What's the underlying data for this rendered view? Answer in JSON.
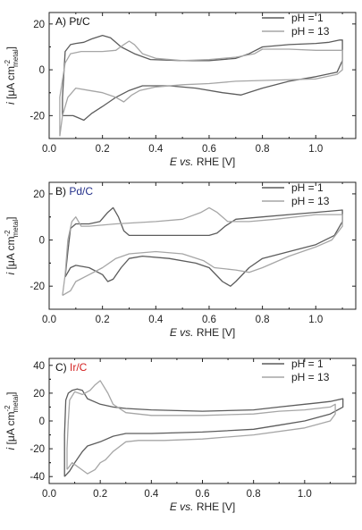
{
  "legend": {
    "entry_1": "pH = 1",
    "entry_2": "pH = 13"
  },
  "colors": {
    "ph1": "#5c5c5c",
    "ph13": "#a6a6a6",
    "pd_label": "#25318a",
    "ir_label": "#d42020",
    "frame": "#222222"
  },
  "panels": [
    {
      "id": "A",
      "label_prefix": "A) ",
      "label_metal": "Pt/C",
      "label_color": "#111111"
    },
    {
      "id": "B",
      "label_prefix": "B) ",
      "label_metal": "Pd/C",
      "label_color": "#25318a"
    },
    {
      "id": "C",
      "label_prefix": "C) ",
      "label_metal": "Ir/C",
      "label_color": "#d42020"
    }
  ],
  "axis_text": {
    "x_title_e": "E",
    "x_title_vs": " vs.",
    "x_title_rest": " RHE [V]",
    "y_title_i": "i",
    "y_title_mid": " [μA cm",
    "y_title_sup": "-2",
    "y_title_sub": "metal",
    "y_title_end": "]"
  },
  "chart_data": [
    {
      "type": "line",
      "title": "A) Pt/C",
      "xlabel": "E vs. RHE [V]",
      "ylabel": "i [μA cm-2 metal]",
      "xlim": [
        0.0,
        1.15
      ],
      "ylim": [
        -30,
        25
      ],
      "xticks": [
        "0.0",
        "0.2",
        "0.4",
        "0.6",
        "0.8",
        "1.0"
      ],
      "yticks": [
        "-20",
        "0",
        "20"
      ],
      "ytick_values": [
        -20,
        0,
        20
      ],
      "legend_position": "top-right",
      "series": [
        {
          "name": "pH = 1",
          "points": [
            [
              0.05,
              -20
            ],
            [
              0.05,
              -12
            ],
            [
              0.06,
              8
            ],
            [
              0.08,
              11
            ],
            [
              0.1,
              11.5
            ],
            [
              0.13,
              12
            ],
            [
              0.16,
              13.5
            ],
            [
              0.2,
              15
            ],
            [
              0.23,
              14
            ],
            [
              0.27,
              10
            ],
            [
              0.32,
              7
            ],
            [
              0.38,
              4.5
            ],
            [
              0.5,
              4
            ],
            [
              0.6,
              4
            ],
            [
              0.7,
              5
            ],
            [
              0.75,
              7
            ],
            [
              0.8,
              10
            ],
            [
              0.9,
              11
            ],
            [
              1.0,
              11.5
            ],
            [
              1.05,
              12
            ],
            [
              1.09,
              13
            ],
            [
              1.1,
              13
            ],
            [
              1.1,
              4
            ],
            [
              1.08,
              -1
            ],
            [
              1.0,
              -3
            ],
            [
              0.9,
              -5
            ],
            [
              0.8,
              -8
            ],
            [
              0.72,
              -11
            ],
            [
              0.65,
              -10
            ],
            [
              0.55,
              -8
            ],
            [
              0.45,
              -7
            ],
            [
              0.35,
              -7
            ],
            [
              0.3,
              -9
            ],
            [
              0.25,
              -12
            ],
            [
              0.2,
              -16
            ],
            [
              0.16,
              -19
            ],
            [
              0.13,
              -22
            ],
            [
              0.11,
              -21
            ],
            [
              0.09,
              -20
            ],
            [
              0.07,
              -20
            ],
            [
              0.05,
              -20
            ]
          ]
        },
        {
          "name": "pH = 13",
          "points": [
            [
              0.04,
              -29
            ],
            [
              0.04,
              -12
            ],
            [
              0.06,
              3
            ],
            [
              0.08,
              7
            ],
            [
              0.12,
              8
            ],
            [
              0.2,
              8
            ],
            [
              0.25,
              8.5
            ],
            [
              0.28,
              11
            ],
            [
              0.3,
              12.5
            ],
            [
              0.32,
              11
            ],
            [
              0.35,
              7
            ],
            [
              0.4,
              5
            ],
            [
              0.5,
              4
            ],
            [
              0.6,
              4.5
            ],
            [
              0.7,
              5.5
            ],
            [
              0.77,
              7
            ],
            [
              0.8,
              9
            ],
            [
              0.9,
              9
            ],
            [
              1.0,
              8.5
            ],
            [
              1.1,
              8.5
            ],
            [
              1.1,
              0
            ],
            [
              1.08,
              -2
            ],
            [
              1.0,
              -4
            ],
            [
              0.85,
              -4.5
            ],
            [
              0.7,
              -5
            ],
            [
              0.6,
              -6
            ],
            [
              0.5,
              -6.5
            ],
            [
              0.4,
              -7.5
            ],
            [
              0.34,
              -9
            ],
            [
              0.31,
              -11
            ],
            [
              0.28,
              -14
            ],
            [
              0.25,
              -12
            ],
            [
              0.2,
              -10
            ],
            [
              0.15,
              -9
            ],
            [
              0.1,
              -8
            ],
            [
              0.07,
              -12
            ],
            [
              0.05,
              -20
            ],
            [
              0.04,
              -29
            ]
          ]
        }
      ]
    },
    {
      "type": "line",
      "title": "B) Pd/C",
      "xlabel": "E vs. RHE [V]",
      "ylabel": "i [μA cm-2 metal]",
      "xlim": [
        0.0,
        1.15
      ],
      "ylim": [
        -30,
        25
      ],
      "xticks": [
        "0.0",
        "0.2",
        "0.4",
        "0.6",
        "0.8",
        "1.0"
      ],
      "yticks": [
        "-20",
        "0",
        "20"
      ],
      "ytick_values": [
        -20,
        0,
        20
      ],
      "legend_position": "top-right",
      "series": [
        {
          "name": "pH = 1",
          "points": [
            [
              0.06,
              -16
            ],
            [
              0.07,
              -5
            ],
            [
              0.08,
              5
            ],
            [
              0.1,
              7
            ],
            [
              0.15,
              7
            ],
            [
              0.19,
              8
            ],
            [
              0.22,
              12
            ],
            [
              0.24,
              14
            ],
            [
              0.26,
              10
            ],
            [
              0.28,
              4
            ],
            [
              0.3,
              2
            ],
            [
              0.4,
              2
            ],
            [
              0.5,
              2
            ],
            [
              0.6,
              2
            ],
            [
              0.63,
              3
            ],
            [
              0.66,
              6
            ],
            [
              0.7,
              9
            ],
            [
              0.8,
              10
            ],
            [
              0.9,
              11
            ],
            [
              1.0,
              12
            ],
            [
              1.1,
              13
            ],
            [
              1.1,
              8
            ],
            [
              1.07,
              2
            ],
            [
              1.0,
              -2
            ],
            [
              0.9,
              -5
            ],
            [
              0.8,
              -8
            ],
            [
              0.75,
              -12
            ],
            [
              0.7,
              -18
            ],
            [
              0.68,
              -20
            ],
            [
              0.65,
              -18
            ],
            [
              0.6,
              -12
            ],
            [
              0.55,
              -10
            ],
            [
              0.45,
              -8
            ],
            [
              0.35,
              -7
            ],
            [
              0.3,
              -8
            ],
            [
              0.27,
              -12
            ],
            [
              0.24,
              -17
            ],
            [
              0.22,
              -18
            ],
            [
              0.2,
              -15
            ],
            [
              0.15,
              -12
            ],
            [
              0.1,
              -11
            ],
            [
              0.08,
              -12
            ],
            [
              0.06,
              -16
            ]
          ]
        },
        {
          "name": "pH = 13",
          "points": [
            [
              0.05,
              -24
            ],
            [
              0.06,
              -15
            ],
            [
              0.07,
              0
            ],
            [
              0.085,
              8
            ],
            [
              0.1,
              10
            ],
            [
              0.12,
              6
            ],
            [
              0.15,
              6
            ],
            [
              0.25,
              7
            ],
            [
              0.4,
              8
            ],
            [
              0.5,
              9
            ],
            [
              0.57,
              12
            ],
            [
              0.6,
              14
            ],
            [
              0.63,
              12
            ],
            [
              0.67,
              8
            ],
            [
              0.75,
              8
            ],
            [
              0.85,
              9
            ],
            [
              1.0,
              11
            ],
            [
              1.1,
              11
            ],
            [
              1.1,
              6
            ],
            [
              1.06,
              0
            ],
            [
              1.0,
              -3
            ],
            [
              0.9,
              -7
            ],
            [
              0.8,
              -12
            ],
            [
              0.75,
              -14
            ],
            [
              0.7,
              -13
            ],
            [
              0.62,
              -12
            ],
            [
              0.58,
              -9
            ],
            [
              0.5,
              -6
            ],
            [
              0.4,
              -5
            ],
            [
              0.3,
              -6
            ],
            [
              0.25,
              -8
            ],
            [
              0.2,
              -12
            ],
            [
              0.15,
              -15
            ],
            [
              0.1,
              -18
            ],
            [
              0.08,
              -22
            ],
            [
              0.05,
              -24
            ]
          ]
        }
      ]
    },
    {
      "type": "line",
      "title": "C) Ir/C",
      "xlabel": "E vs. RHE [V]",
      "ylabel": "i [μA cm-2 metal]",
      "xlim": [
        0.0,
        1.2
      ],
      "ylim": [
        -45,
        45
      ],
      "xticks": [
        "0.0",
        "0.2",
        "0.4",
        "0.6",
        "0.8",
        "1.0"
      ],
      "yticks": [
        "-40",
        "-20",
        "0",
        "20",
        "40"
      ],
      "ytick_values": [
        -40,
        -20,
        0,
        20,
        40
      ],
      "legend_position": "top-right",
      "series": [
        {
          "name": "pH = 1",
          "points": [
            [
              0.06,
              -40
            ],
            [
              0.06,
              -10
            ],
            [
              0.065,
              15
            ],
            [
              0.075,
              20
            ],
            [
              0.09,
              22
            ],
            [
              0.11,
              23
            ],
            [
              0.13,
              22
            ],
            [
              0.15,
              16
            ],
            [
              0.2,
              12
            ],
            [
              0.25,
              10
            ],
            [
              0.3,
              9
            ],
            [
              0.4,
              8
            ],
            [
              0.6,
              7
            ],
            [
              0.8,
              8
            ],
            [
              0.9,
              10
            ],
            [
              1.0,
              12
            ],
            [
              1.05,
              13
            ],
            [
              1.1,
              14
            ],
            [
              1.15,
              16
            ],
            [
              1.15,
              10
            ],
            [
              1.1,
              5
            ],
            [
              1.0,
              0
            ],
            [
              0.9,
              -3
            ],
            [
              0.8,
              -6
            ],
            [
              0.6,
              -8
            ],
            [
              0.4,
              -9
            ],
            [
              0.3,
              -9
            ],
            [
              0.25,
              -11
            ],
            [
              0.2,
              -15
            ],
            [
              0.15,
              -18
            ],
            [
              0.13,
              -22
            ],
            [
              0.1,
              -30
            ],
            [
              0.08,
              -36
            ],
            [
              0.06,
              -40
            ]
          ]
        },
        {
          "name": "pH = 13",
          "points": [
            [
              0.07,
              -35
            ],
            [
              0.07,
              -20
            ],
            [
              0.075,
              0
            ],
            [
              0.08,
              15
            ],
            [
              0.1,
              21
            ],
            [
              0.13,
              19
            ],
            [
              0.16,
              22
            ],
            [
              0.18,
              26
            ],
            [
              0.2,
              29
            ],
            [
              0.21,
              26
            ],
            [
              0.23,
              20
            ],
            [
              0.25,
              12
            ],
            [
              0.3,
              6
            ],
            [
              0.4,
              4
            ],
            [
              0.6,
              4
            ],
            [
              0.8,
              5
            ],
            [
              0.9,
              7
            ],
            [
              1.0,
              8
            ],
            [
              1.1,
              10
            ],
            [
              1.12,
              12
            ],
            [
              1.12,
              5
            ],
            [
              1.1,
              0
            ],
            [
              1.0,
              -5
            ],
            [
              0.8,
              -10
            ],
            [
              0.6,
              -13
            ],
            [
              0.45,
              -14
            ],
            [
              0.35,
              -14
            ],
            [
              0.3,
              -15
            ],
            [
              0.25,
              -22
            ],
            [
              0.22,
              -28
            ],
            [
              0.2,
              -30
            ],
            [
              0.18,
              -35
            ],
            [
              0.15,
              -38
            ],
            [
              0.12,
              -34
            ],
            [
              0.09,
              -30
            ],
            [
              0.07,
              -35
            ]
          ]
        }
      ]
    }
  ]
}
